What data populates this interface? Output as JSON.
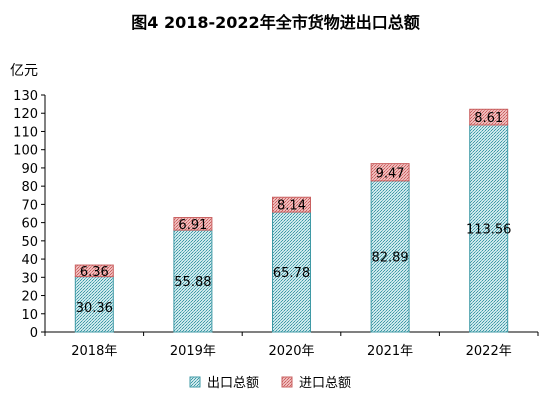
{
  "chart_data": {
    "type": "bar",
    "stacked": true,
    "title": "图4    2018-2022年全市货物进出口总额",
    "unit": "亿元",
    "categories": [
      "2018年",
      "2019年",
      "2020年",
      "2021年",
      "2022年"
    ],
    "series": [
      {
        "name": "出口总额",
        "values": [
          30.36,
          55.88,
          65.78,
          82.89,
          113.56
        ],
        "color": "#7fc7d0",
        "pattern": "crosshatch"
      },
      {
        "name": "进口总额",
        "values": [
          6.36,
          6.91,
          8.14,
          9.47,
          8.61
        ],
        "color": "#e08a8a",
        "pattern": "crosshatch"
      }
    ],
    "ylim": [
      0,
      130
    ],
    "yticks": [
      0,
      10,
      20,
      30,
      40,
      50,
      60,
      70,
      80,
      90,
      100,
      110,
      120,
      130
    ],
    "grid": false,
    "legend": "bottom"
  }
}
